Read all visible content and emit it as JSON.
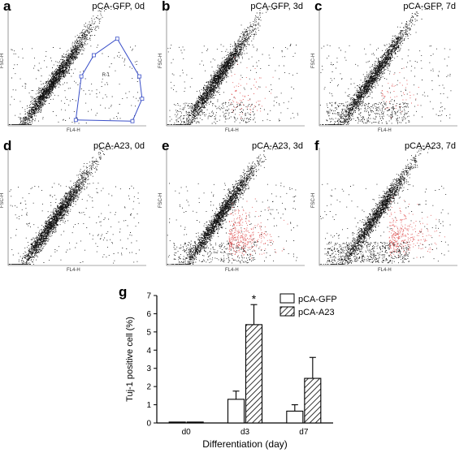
{
  "flow_panels": [
    {
      "letter": "a",
      "title": "pCA-GFP, 0d",
      "xlabel": "FL4-H",
      "ylabel": "FSC-H",
      "gate_label": "R-1",
      "red_fraction": 0.0,
      "spread": 0.0
    },
    {
      "letter": "b",
      "title": "pCA-GFP, 3d",
      "xlabel": "FL4-H",
      "ylabel": "FSC-H",
      "red_fraction": 0.03,
      "spread": 0.35
    },
    {
      "letter": "c",
      "title": "pCA-GFP, 7d",
      "xlabel": "FL4-H",
      "ylabel": "FSC-H",
      "red_fraction": 0.02,
      "spread": 0.55
    },
    {
      "letter": "d",
      "title": "pCA-A23, 0d",
      "xlabel": "FL4-H",
      "ylabel": "FSC-H",
      "red_fraction": 0.0,
      "spread": 0.0
    },
    {
      "letter": "e",
      "title": "pCA-A23, 3d",
      "xlabel": "FL4-H",
      "ylabel": "FSC-H",
      "red_fraction": 0.14,
      "spread": 0.45
    },
    {
      "letter": "f",
      "title": "pCA-A23, 7d",
      "xlabel": "FL4-H",
      "ylabel": "FSC-H",
      "red_fraction": 0.12,
      "spread": 0.75
    }
  ],
  "colors": {
    "dots": "#111111",
    "gated": "#e05050",
    "gate": "#3a4fc8"
  },
  "chart_data": {
    "letter": "g",
    "type": "bar",
    "categories": [
      "d0",
      "d3",
      "d7"
    ],
    "series": [
      {
        "name": "pCA-GFP",
        "values": [
          0.05,
          1.3,
          0.65
        ],
        "errors": [
          0.02,
          0.45,
          0.35
        ],
        "fill": "open"
      },
      {
        "name": "pCA-A23",
        "values": [
          0.05,
          5.4,
          2.45
        ],
        "errors": [
          0.02,
          1.1,
          1.15
        ],
        "fill": "hatched"
      }
    ],
    "xlabel": "Differentiation (day)",
    "ylabel": "Tuj-1 positive cell (%)",
    "ylim": [
      0,
      7
    ],
    "yticks": [
      0,
      1,
      2,
      3,
      4,
      5,
      6,
      7
    ],
    "annotation": "*",
    "legend_position": "top-right"
  }
}
